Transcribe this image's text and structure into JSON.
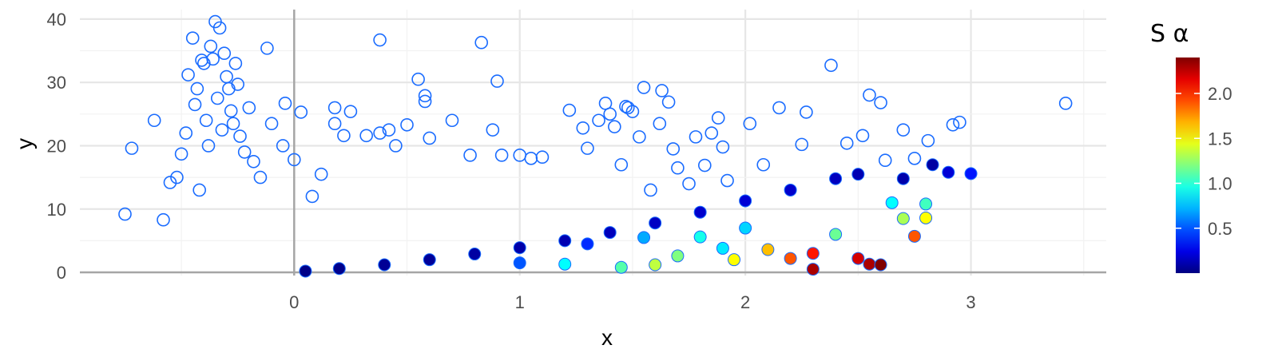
{
  "chart_data": {
    "type": "scatter",
    "title": "",
    "xlabel": "x",
    "ylabel": "y",
    "xlim": [
      -0.95,
      3.6
    ],
    "ylim": [
      -0.5,
      41.5
    ],
    "xticks": [
      0,
      1,
      2,
      3
    ],
    "yticks": [
      0,
      10,
      20,
      30,
      40
    ],
    "grid": true,
    "zero_reference_lines": true,
    "legend": {
      "title": "S α",
      "position": "right",
      "type": "colorbar",
      "colormap": "jet",
      "range": [
        0.0,
        2.4
      ],
      "ticks": [
        0.5,
        1.0,
        1.5,
        2.0
      ],
      "tick_labels": [
        "0.5",
        "1.0",
        "1.5",
        "2.0"
      ]
    },
    "series": [
      {
        "marker": "open-circle",
        "color": "#1a6cff",
        "points": [
          [
            -0.75,
            9.2
          ],
          [
            -0.72,
            19.6
          ],
          [
            -0.62,
            24.0
          ],
          [
            -0.58,
            8.3
          ],
          [
            -0.55,
            14.2
          ],
          [
            -0.52,
            15.0
          ],
          [
            -0.5,
            18.7
          ],
          [
            -0.48,
            22.0
          ],
          [
            -0.47,
            31.2
          ],
          [
            -0.45,
            37.0
          ],
          [
            -0.44,
            26.5
          ],
          [
            -0.43,
            29.0
          ],
          [
            -0.42,
            13.0
          ],
          [
            -0.41,
            33.5
          ],
          [
            -0.4,
            33.0
          ],
          [
            -0.39,
            24.0
          ],
          [
            -0.38,
            20.0
          ],
          [
            -0.37,
            35.7
          ],
          [
            -0.36,
            33.7
          ],
          [
            -0.35,
            39.6
          ],
          [
            -0.34,
            27.5
          ],
          [
            -0.33,
            38.6
          ],
          [
            -0.32,
            22.5
          ],
          [
            -0.31,
            34.6
          ],
          [
            -0.3,
            30.9
          ],
          [
            -0.29,
            29.0
          ],
          [
            -0.28,
            25.5
          ],
          [
            -0.27,
            23.5
          ],
          [
            -0.26,
            33.0
          ],
          [
            -0.25,
            29.7
          ],
          [
            -0.24,
            21.5
          ],
          [
            -0.22,
            19.0
          ],
          [
            -0.2,
            26.0
          ],
          [
            -0.18,
            17.5
          ],
          [
            -0.15,
            15.0
          ],
          [
            -0.12,
            35.4
          ],
          [
            -0.1,
            23.5
          ],
          [
            -0.05,
            20.0
          ],
          [
            -0.04,
            26.7
          ],
          [
            0.0,
            17.8
          ],
          [
            0.03,
            25.3
          ],
          [
            0.08,
            12.0
          ],
          [
            0.12,
            15.5
          ],
          [
            0.18,
            26.0
          ],
          [
            0.18,
            23.5
          ],
          [
            0.22,
            21.6
          ],
          [
            0.25,
            25.4
          ],
          [
            0.32,
            21.6
          ],
          [
            0.38,
            36.7
          ],
          [
            0.38,
            22.0
          ],
          [
            0.42,
            22.5
          ],
          [
            0.45,
            20.0
          ],
          [
            0.5,
            23.3
          ],
          [
            0.55,
            30.5
          ],
          [
            0.58,
            27.9
          ],
          [
            0.58,
            27.0
          ],
          [
            0.6,
            21.2
          ],
          [
            0.7,
            24.0
          ],
          [
            0.78,
            18.5
          ],
          [
            0.83,
            36.3
          ],
          [
            0.88,
            22.5
          ],
          [
            0.9,
            30.2
          ],
          [
            0.92,
            18.5
          ],
          [
            1.0,
            18.5
          ],
          [
            1.05,
            18.0
          ],
          [
            1.1,
            18.2
          ],
          [
            1.22,
            25.6
          ],
          [
            1.28,
            22.8
          ],
          [
            1.3,
            19.6
          ],
          [
            1.35,
            24.0
          ],
          [
            1.38,
            26.7
          ],
          [
            1.4,
            25.0
          ],
          [
            1.42,
            23.0
          ],
          [
            1.45,
            17.0
          ],
          [
            1.47,
            26.2
          ],
          [
            1.48,
            26.0
          ],
          [
            1.5,
            25.4
          ],
          [
            1.53,
            21.4
          ],
          [
            1.55,
            29.2
          ],
          [
            1.58,
            13.0
          ],
          [
            1.62,
            23.5
          ],
          [
            1.63,
            28.7
          ],
          [
            1.66,
            26.9
          ],
          [
            1.68,
            19.5
          ],
          [
            1.7,
            16.5
          ],
          [
            1.75,
            14.0
          ],
          [
            1.78,
            21.4
          ],
          [
            1.82,
            16.9
          ],
          [
            1.85,
            22.0
          ],
          [
            1.88,
            24.4
          ],
          [
            1.9,
            19.8
          ],
          [
            1.92,
            14.5
          ],
          [
            2.02,
            23.5
          ],
          [
            2.08,
            17.0
          ],
          [
            2.15,
            26.0
          ],
          [
            2.25,
            20.2
          ],
          [
            2.27,
            25.3
          ],
          [
            2.38,
            32.7
          ],
          [
            2.45,
            20.4
          ],
          [
            2.52,
            21.6
          ],
          [
            2.55,
            28.0
          ],
          [
            2.6,
            26.8
          ],
          [
            2.62,
            17.7
          ],
          [
            2.7,
            22.5
          ],
          [
            2.75,
            18.0
          ],
          [
            2.81,
            20.8
          ],
          [
            2.92,
            23.3
          ],
          [
            2.95,
            23.7
          ],
          [
            3.42,
            26.7
          ]
        ]
      },
      {
        "marker": "filled-circle",
        "color_scale": "S α",
        "points": [
          [
            0.05,
            0.2,
            0.02
          ],
          [
            0.2,
            0.6,
            0.03
          ],
          [
            0.4,
            1.2,
            0.05
          ],
          [
            0.6,
            2.0,
            0.06
          ],
          [
            0.8,
            2.9,
            0.08
          ],
          [
            1.0,
            3.9,
            0.1
          ],
          [
            1.2,
            5.0,
            0.12
          ],
          [
            1.4,
            6.3,
            0.14
          ],
          [
            1.6,
            7.8,
            0.16
          ],
          [
            1.8,
            9.5,
            0.18
          ],
          [
            2.0,
            11.3,
            0.2
          ],
          [
            2.2,
            13.0,
            0.18
          ],
          [
            2.4,
            14.8,
            0.15
          ],
          [
            2.5,
            15.5,
            0.12
          ],
          [
            2.7,
            14.8,
            0.1
          ],
          [
            2.83,
            17.0,
            0.08
          ],
          [
            2.9,
            15.8,
            0.2
          ],
          [
            3.0,
            15.6,
            0.35
          ],
          [
            1.0,
            1.5,
            0.5
          ],
          [
            1.2,
            1.3,
            0.9
          ],
          [
            1.3,
            4.5,
            0.4
          ],
          [
            1.45,
            0.8,
            1.1
          ],
          [
            1.55,
            5.5,
            0.7
          ],
          [
            1.6,
            1.2,
            1.35
          ],
          [
            1.7,
            2.6,
            1.2
          ],
          [
            1.8,
            5.6,
            0.95
          ],
          [
            1.9,
            3.8,
            0.85
          ],
          [
            1.95,
            2.0,
            1.5
          ],
          [
            2.0,
            7.0,
            0.8
          ],
          [
            2.1,
            3.6,
            1.65
          ],
          [
            2.2,
            2.2,
            1.9
          ],
          [
            2.3,
            3.0,
            2.05
          ],
          [
            2.3,
            0.5,
            2.3
          ],
          [
            2.4,
            6.0,
            1.15
          ],
          [
            2.5,
            2.2,
            2.2
          ],
          [
            2.55,
            1.3,
            2.3
          ],
          [
            2.6,
            1.2,
            2.4
          ],
          [
            2.65,
            11.0,
            0.9
          ],
          [
            2.7,
            8.5,
            1.3
          ],
          [
            2.75,
            5.7,
            1.9
          ],
          [
            2.8,
            10.8,
            1.05
          ],
          [
            2.8,
            8.6,
            1.5
          ]
        ]
      }
    ]
  }
}
